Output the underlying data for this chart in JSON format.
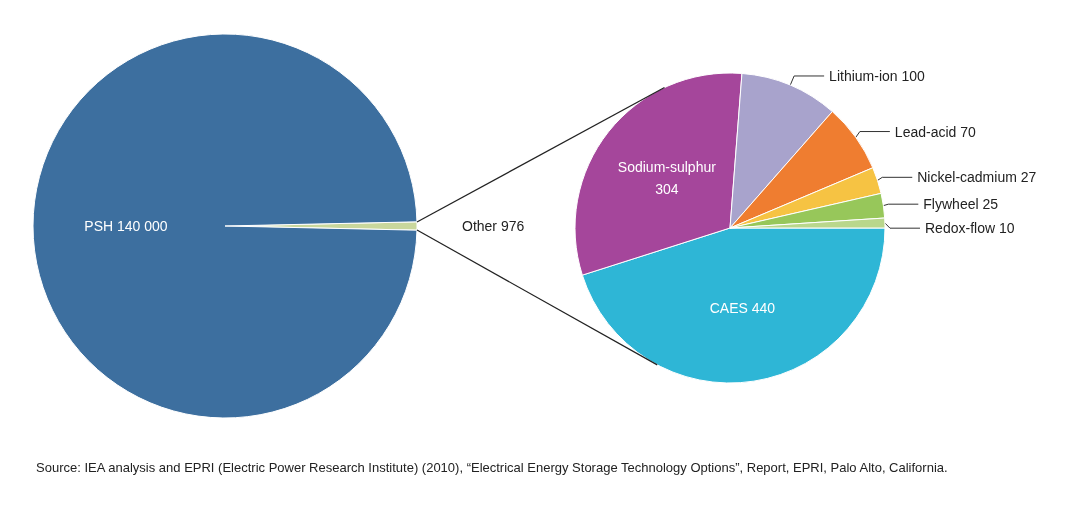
{
  "chart_data": [
    {
      "type": "pie",
      "categories": [
        "Other",
        "PSH"
      ],
      "values": [
        976,
        140000
      ],
      "value_labels": [
        "976",
        "140 000"
      ],
      "colors": [
        "#c9d79c",
        "#3d6f9f"
      ]
    },
    {
      "type": "pie",
      "categories": [
        "CAES",
        "Sodium-sulphur",
        "Lithium-ion",
        "Lead-acid",
        "Nickel-cadmium",
        "Flywheel",
        "Redox-flow"
      ],
      "values": [
        440,
        304,
        100,
        70,
        27,
        25,
        10
      ],
      "data_labels": true,
      "colors": [
        "#2eb6d6",
        "#a5469b",
        "#a8a3cc",
        "#ef7d30",
        "#f6c343",
        "#97c75a",
        "#b9d78c"
      ],
      "annotations": [
        "Source: IEA analysis and EPRI (Electric Power Research Institute) (2010), “Electrical Energy Storage Technology Options”, Report, EPRI, Palo Alto, California."
      ]
    }
  ]
}
